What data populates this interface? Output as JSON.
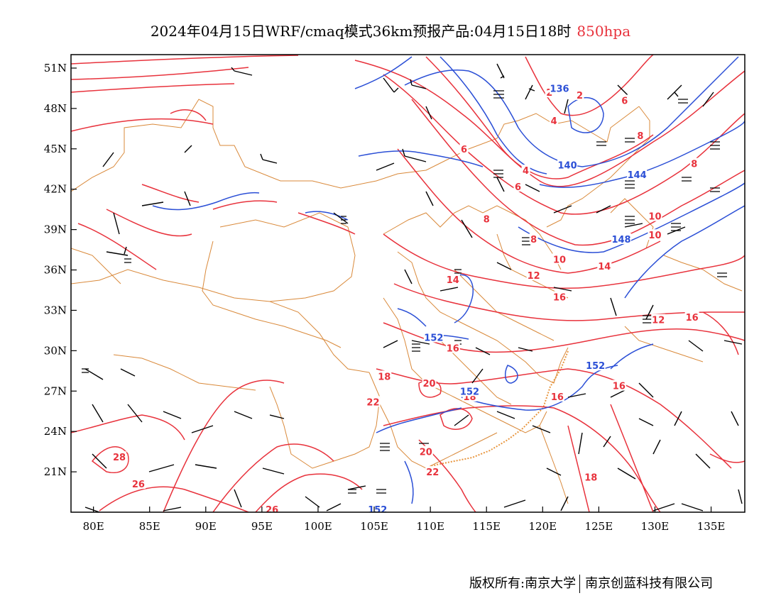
{
  "title": {
    "main": "2024年04月15日WRF/cmaq模式36km预报产品:04月15日18时",
    "level": "850hpa",
    "level_color": "#e8323c"
  },
  "map": {
    "lon_range": [
      78,
      138
    ],
    "lat_range": [
      18,
      52
    ],
    "lon_ticks": [
      80,
      85,
      90,
      95,
      100,
      105,
      110,
      115,
      120,
      125,
      130,
      135
    ],
    "lat_ticks": [
      21,
      24,
      27,
      30,
      33,
      36,
      39,
      42,
      45,
      48,
      51
    ],
    "lon_tick_labels": [
      "80E",
      "85E",
      "90E",
      "95E",
      "100E",
      "105E",
      "110E",
      "115E",
      "120E",
      "125E",
      "130E",
      "135E"
    ],
    "lat_tick_labels": [
      "21N",
      "24N",
      "27N",
      "30N",
      "33N",
      "36N",
      "39N",
      "42N",
      "45N",
      "48N",
      "51N"
    ],
    "temperature_contours": {
      "color": "#e8323c",
      "labels": [
        {
          "text": "2",
          "lon": 120.6,
          "lat": 49.2
        },
        {
          "text": "2",
          "lon": 123.3,
          "lat": 49.0
        },
        {
          "text": "4",
          "lon": 121.0,
          "lat": 47.1
        },
        {
          "text": "6",
          "lon": 127.3,
          "lat": 48.6
        },
        {
          "text": "6",
          "lon": 113.0,
          "lat": 45.0
        },
        {
          "text": "4",
          "lon": 118.5,
          "lat": 43.4
        },
        {
          "text": "6",
          "lon": 117.8,
          "lat": 42.2
        },
        {
          "text": "8",
          "lon": 128.7,
          "lat": 46.0
        },
        {
          "text": "8",
          "lon": 133.5,
          "lat": 43.9
        },
        {
          "text": "8",
          "lon": 115.0,
          "lat": 39.8
        },
        {
          "text": "8",
          "lon": 119.2,
          "lat": 38.3
        },
        {
          "text": "10",
          "lon": 130.0,
          "lat": 40.0
        },
        {
          "text": "10",
          "lon": 130.0,
          "lat": 38.6
        },
        {
          "text": "10",
          "lon": 121.5,
          "lat": 36.8
        },
        {
          "text": "14",
          "lon": 125.5,
          "lat": 36.3
        },
        {
          "text": "12",
          "lon": 119.2,
          "lat": 35.6
        },
        {
          "text": "14",
          "lon": 112.0,
          "lat": 35.3
        },
        {
          "text": "16",
          "lon": 121.5,
          "lat": 34.0
        },
        {
          "text": "12",
          "lon": 130.3,
          "lat": 32.3
        },
        {
          "text": "16",
          "lon": 133.3,
          "lat": 32.5
        },
        {
          "text": "16",
          "lon": 112.0,
          "lat": 30.2
        },
        {
          "text": "16",
          "lon": 126.8,
          "lat": 27.4
        },
        {
          "text": "16",
          "lon": 121.3,
          "lat": 26.6
        },
        {
          "text": "18",
          "lon": 105.9,
          "lat": 28.1
        },
        {
          "text": "20",
          "lon": 109.9,
          "lat": 27.6
        },
        {
          "text": "18",
          "lon": 113.5,
          "lat": 26.6
        },
        {
          "text": "22",
          "lon": 104.9,
          "lat": 26.2
        },
        {
          "text": "20",
          "lon": 109.6,
          "lat": 22.5
        },
        {
          "text": "22",
          "lon": 110.2,
          "lat": 21.0
        },
        {
          "text": "28",
          "lon": 82.3,
          "lat": 22.1
        },
        {
          "text": "26",
          "lon": 84.0,
          "lat": 20.1
        },
        {
          "text": "18",
          "lon": 124.3,
          "lat": 20.6
        },
        {
          "text": "26",
          "lon": 95.9,
          "lat": 18.2
        }
      ]
    },
    "height_contours": {
      "color": "#2b4fd6",
      "labels": [
        {
          "text": "136",
          "lon": 121.5,
          "lat": 49.5
        },
        {
          "text": "140",
          "lon": 122.2,
          "lat": 43.8
        },
        {
          "text": "144",
          "lon": 128.4,
          "lat": 43.1
        },
        {
          "text": "148",
          "lon": 127.0,
          "lat": 38.3
        },
        {
          "text": "152",
          "lon": 110.3,
          "lat": 31.0
        },
        {
          "text": "152",
          "lon": 124.7,
          "lat": 28.9
        },
        {
          "text": "152",
          "lon": 113.5,
          "lat": 27.0
        },
        {
          "text": "152",
          "lon": 105.3,
          "lat": 18.2
        }
      ]
    },
    "boundary_color": "#d9893a",
    "barb_color": "#000000"
  },
  "footer": {
    "left": "版权所有:南京大学",
    "right": "南京创蓝科技有限公司"
  }
}
